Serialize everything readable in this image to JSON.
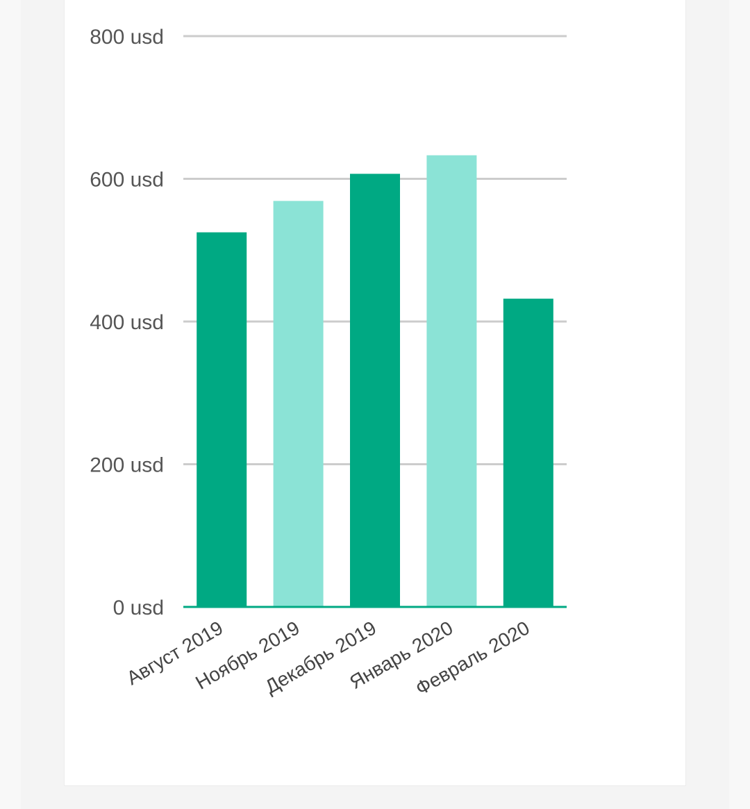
{
  "chart_data": {
    "type": "bar",
    "categories": [
      "Август 2019",
      "Ноябрь 2019",
      "Декабрь 2019",
      "Январь 2020",
      "Февраль 2020"
    ],
    "values": [
      525,
      569,
      607,
      633,
      432
    ],
    "ylim": [
      0,
      800
    ],
    "yticks": [
      0,
      200,
      400,
      600,
      800
    ],
    "ytick_labels": [
      "0 usd",
      "200 usd",
      "400 usd",
      "600 usd",
      "800 usd"
    ],
    "grid": true,
    "colors": [
      "#00a983",
      "#8be3d6",
      "#00a983",
      "#8be3d6",
      "#00a983"
    ],
    "gridColor": "#cccccc",
    "axisColor": "#00a983"
  }
}
